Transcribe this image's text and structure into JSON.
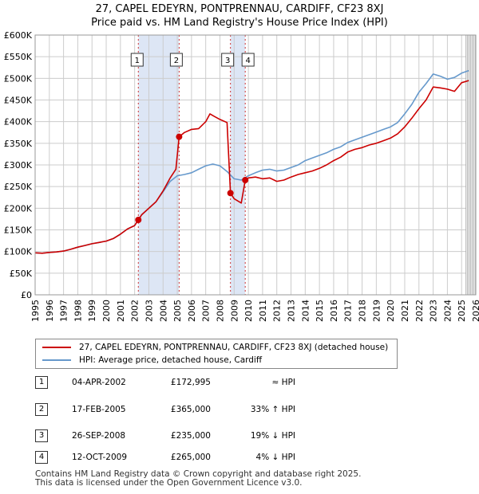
{
  "title_line1": "27, CAPEL EDEYRN, PONTPRENNAU, CARDIFF, CF23 8XJ",
  "title_line2": "Price paid vs. HM Land Registry's House Price Index (HPI)",
  "legend": {
    "property_label": "27, CAPEL EDEYRN, PONTPRENNAU, CARDIFF, CF23 8XJ (detached house)",
    "hpi_label": "HPI: Average price, detached house, Cardiff"
  },
  "transactions": [
    {
      "num": "1",
      "date": "04-APR-2002",
      "price": "£172,995",
      "hpi": "≈ HPI"
    },
    {
      "num": "2",
      "date": "17-FEB-2005",
      "price": "£365,000",
      "hpi": "33% ↑ HPI"
    },
    {
      "num": "3",
      "date": "26-SEP-2008",
      "price": "£235,000",
      "hpi": "19% ↓ HPI"
    },
    {
      "num": "4",
      "date": "12-OCT-2009",
      "price": "£265,000",
      "hpi": "4% ↓ HPI"
    }
  ],
  "footer_line1": "Contains HM Land Registry data © Crown copyright and database right 2025.",
  "footer_line2": "This data is licensed under the Open Government Licence v3.0.",
  "colors": {
    "property": "#cc0000",
    "hpi": "#6699cc",
    "shade": "#dde6f5",
    "marker_line": "#cc3333",
    "grid": "#cccccc"
  },
  "chart_data": {
    "type": "line",
    "title": "27, CAPEL EDEYRN, PONTPRENNAU, CARDIFF, CF23 8XJ",
    "subtitle": "Price paid vs. HM Land Registry's House Price Index (HPI)",
    "xlabel": "",
    "ylabel": "",
    "xlim": [
      1995,
      2026
    ],
    "ylim": [
      0,
      600000
    ],
    "y_ticks": [
      0,
      50000,
      100000,
      150000,
      200000,
      250000,
      300000,
      350000,
      400000,
      450000,
      500000,
      550000,
      600000
    ],
    "y_tick_labels": [
      "£0",
      "£50K",
      "£100K",
      "£150K",
      "£200K",
      "£250K",
      "£300K",
      "£350K",
      "£400K",
      "£450K",
      "£500K",
      "£550K",
      "£600K"
    ],
    "x_ticks": [
      1995,
      1996,
      1997,
      1998,
      1999,
      2000,
      2001,
      2002,
      2003,
      2004,
      2005,
      2006,
      2007,
      2008,
      2009,
      2010,
      2011,
      2012,
      2013,
      2014,
      2015,
      2016,
      2017,
      2018,
      2019,
      2020,
      2021,
      2022,
      2023,
      2024,
      2025,
      2026
    ],
    "grid": true,
    "shaded_ranges": [
      [
        2002.26,
        2005.13
      ],
      [
        2008.74,
        2009.78
      ]
    ],
    "forecast_from": 2025.3,
    "series": [
      {
        "name": "27, CAPEL EDEYRN, PONTPRENNAU, CARDIFF, CF23 8XJ (detached house)",
        "x": [
          1995.0,
          1995.5,
          1996.0,
          1996.5,
          1997.0,
          1997.5,
          1998.0,
          1998.5,
          1999.0,
          1999.5,
          2000.0,
          2000.5,
          2001.0,
          2001.5,
          2002.0,
          2002.26,
          2002.5,
          2003.0,
          2003.5,
          2004.0,
          2004.5,
          2004.9,
          2005.13,
          2005.5,
          2006.0,
          2006.5,
          2007.0,
          2007.3,
          2007.6,
          2008.0,
          2008.5,
          2008.74,
          2009.0,
          2009.5,
          2009.78,
          2010.0,
          2010.5,
          2011.0,
          2011.5,
          2012.0,
          2012.5,
          2013.0,
          2013.5,
          2014.0,
          2014.5,
          2015.0,
          2015.5,
          2016.0,
          2016.5,
          2017.0,
          2017.5,
          2018.0,
          2018.5,
          2019.0,
          2019.5,
          2020.0,
          2020.5,
          2021.0,
          2021.5,
          2022.0,
          2022.5,
          2023.0,
          2023.5,
          2024.0,
          2024.5,
          2025.0,
          2025.5
        ],
        "values": [
          97000,
          96000,
          98000,
          99000,
          101000,
          105000,
          110000,
          114000,
          118000,
          121000,
          124000,
          130000,
          140000,
          152000,
          160000,
          172995,
          185000,
          200000,
          215000,
          240000,
          270000,
          290000,
          365000,
          375000,
          382000,
          384000,
          400000,
          418000,
          412000,
          405000,
          398000,
          235000,
          222000,
          212000,
          265000,
          270000,
          272000,
          268000,
          270000,
          262000,
          265000,
          272000,
          278000,
          282000,
          286000,
          292000,
          300000,
          310000,
          318000,
          330000,
          336000,
          340000,
          346000,
          350000,
          356000,
          362000,
          372000,
          388000,
          408000,
          430000,
          450000,
          480000,
          478000,
          475000,
          470000,
          490000,
          495000
        ]
      },
      {
        "name": "HPI: Average price, detached house, Cardiff",
        "x": [
          1995.0,
          1995.5,
          1996.0,
          1996.5,
          1997.0,
          1997.5,
          1998.0,
          1998.5,
          1999.0,
          1999.5,
          2000.0,
          2000.5,
          2001.0,
          2001.5,
          2002.0,
          2002.5,
          2003.0,
          2003.5,
          2004.0,
          2004.5,
          2005.0,
          2005.5,
          2006.0,
          2006.5,
          2007.0,
          2007.5,
          2008.0,
          2008.5,
          2009.0,
          2009.5,
          2010.0,
          2010.5,
          2011.0,
          2011.5,
          2012.0,
          2012.5,
          2013.0,
          2013.5,
          2014.0,
          2014.5,
          2015.0,
          2015.5,
          2016.0,
          2016.5,
          2017.0,
          2017.5,
          2018.0,
          2018.5,
          2019.0,
          2019.5,
          2020.0,
          2020.5,
          2021.0,
          2021.5,
          2022.0,
          2022.5,
          2023.0,
          2023.5,
          2024.0,
          2024.5,
          2025.0,
          2025.5
        ],
        "values": [
          97000,
          96000,
          98000,
          99000,
          101000,
          105000,
          110000,
          114000,
          118000,
          121000,
          124000,
          130000,
          140000,
          152000,
          160000,
          185000,
          200000,
          215000,
          238000,
          262000,
          275000,
          278000,
          282000,
          290000,
          298000,
          302000,
          298000,
          285000,
          268000,
          265000,
          275000,
          282000,
          288000,
          290000,
          286000,
          288000,
          294000,
          300000,
          310000,
          316000,
          322000,
          328000,
          336000,
          342000,
          352000,
          358000,
          364000,
          370000,
          376000,
          382000,
          388000,
          398000,
          418000,
          440000,
          468000,
          488000,
          510000,
          505000,
          498000,
          502000,
          512000,
          518000
        ]
      }
    ],
    "markers": [
      {
        "label": "1",
        "x": 2002.26,
        "y": 172995
      },
      {
        "label": "2",
        "x": 2005.13,
        "y": 365000
      },
      {
        "label": "3",
        "x": 2008.74,
        "y": 235000
      },
      {
        "label": "4",
        "x": 2009.78,
        "y": 265000
      }
    ]
  }
}
